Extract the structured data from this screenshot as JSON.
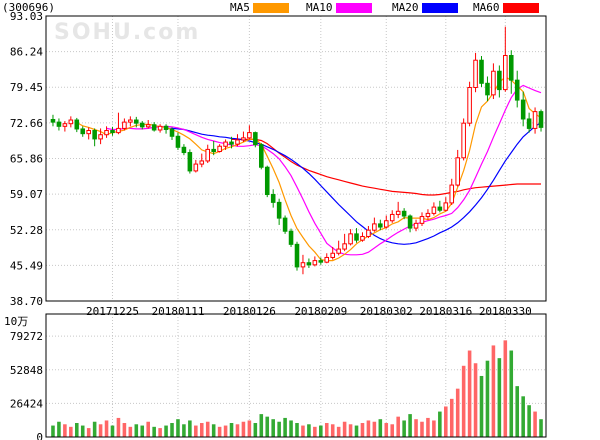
{
  "header": {
    "stock_code": "(300696)",
    "watermark": "SOHU.com",
    "legend": [
      {
        "label": "MA5",
        "color": "#ff9900"
      },
      {
        "label": "MA10",
        "color": "#ff00ff"
      },
      {
        "label": "MA20",
        "color": "#0000ff"
      },
      {
        "label": "MA60",
        "color": "#ff0000"
      }
    ]
  },
  "chart_data": [
    {
      "type": "candlestick",
      "title": "",
      "price_ticks": [
        "93.03",
        "86.24",
        "79.45",
        "72.66",
        "65.86",
        "59.07",
        "52.28",
        "45.49",
        "38.70"
      ],
      "ylim": [
        38.7,
        93.03
      ],
      "x_ticks": [
        {
          "label": "20171225",
          "index": 10
        },
        {
          "label": "20180111",
          "index": 21
        },
        {
          "label": "20180126",
          "index": 33
        },
        {
          "label": "20180209",
          "index": 45
        },
        {
          "label": "20180302",
          "index": 56
        },
        {
          "label": "20180316",
          "index": 66
        },
        {
          "label": "20180330",
          "index": 76
        }
      ],
      "up_color": "#ff0000",
      "down_color": "#009900",
      "ohlc": [
        [
          73.3,
          72.8,
          74.2,
          72.0
        ],
        [
          72.8,
          72.0,
          73.5,
          71.2
        ],
        [
          72.0,
          72.5,
          73.0,
          71.0
        ],
        [
          72.5,
          73.2,
          73.9,
          71.8
        ],
        [
          73.2,
          71.5,
          73.6,
          70.9
        ],
        [
          71.5,
          70.6,
          72.0,
          70.0
        ],
        [
          70.6,
          71.2,
          71.8,
          69.5
        ],
        [
          71.2,
          69.6,
          71.6,
          68.2
        ],
        [
          69.6,
          70.4,
          71.6,
          68.6
        ],
        [
          70.4,
          71.2,
          72.0,
          69.8
        ],
        [
          71.2,
          70.8,
          71.9,
          70.2
        ],
        [
          70.8,
          71.6,
          74.6,
          70.5
        ],
        [
          71.6,
          72.8,
          73.5,
          71.2
        ],
        [
          72.8,
          73.2,
          73.9,
          72.0
        ],
        [
          73.2,
          72.6,
          73.8,
          71.8
        ],
        [
          72.6,
          71.9,
          73.0,
          71.4
        ],
        [
          71.9,
          72.3,
          73.2,
          71.6
        ],
        [
          72.3,
          71.3,
          72.8,
          71.0
        ],
        [
          71.3,
          72.0,
          72.4,
          70.8
        ],
        [
          72.0,
          71.4,
          72.4,
          70.6
        ],
        [
          71.4,
          70.1,
          71.8,
          69.4
        ],
        [
          70.1,
          68.0,
          70.8,
          67.5
        ],
        [
          68.0,
          67.0,
          68.6,
          66.5
        ],
        [
          67.0,
          63.5,
          67.6,
          63.0
        ],
        [
          63.5,
          64.8,
          65.6,
          63.2
        ],
        [
          64.8,
          65.4,
          66.8,
          64.2
        ],
        [
          65.4,
          67.6,
          68.5,
          65.0
        ],
        [
          67.6,
          67.2,
          69.2,
          66.5
        ],
        [
          67.2,
          68.2,
          68.6,
          67.0
        ],
        [
          68.2,
          69.0,
          69.5,
          67.5
        ],
        [
          69.0,
          68.6,
          70.0,
          67.8
        ],
        [
          68.6,
          69.4,
          70.5,
          68.2
        ],
        [
          69.4,
          69.8,
          71.0,
          69.0
        ],
        [
          69.8,
          70.8,
          72.2,
          69.5
        ],
        [
          70.8,
          68.5,
          71.0,
          68.0
        ],
        [
          68.5,
          64.2,
          68.8,
          63.8
        ],
        [
          64.2,
          59.0,
          64.5,
          58.5
        ],
        [
          59.0,
          57.5,
          60.0,
          56.5
        ],
        [
          57.5,
          54.5,
          58.2,
          53.2
        ],
        [
          54.5,
          52.0,
          55.0,
          51.5
        ],
        [
          52.0,
          49.5,
          52.5,
          49.0
        ],
        [
          49.5,
          45.2,
          50.0,
          44.5
        ],
        [
          45.2,
          46.0,
          47.5,
          43.8
        ],
        [
          46.0,
          45.6,
          46.8,
          45.0
        ],
        [
          45.6,
          46.4,
          47.2,
          45.3
        ],
        [
          46.4,
          46.1,
          47.0,
          45.6
        ],
        [
          46.1,
          47.0,
          47.8,
          45.9
        ],
        [
          47.0,
          47.8,
          49.0,
          46.6
        ],
        [
          47.8,
          48.6,
          50.2,
          47.4
        ],
        [
          48.6,
          49.6,
          51.5,
          48.2
        ],
        [
          49.6,
          51.5,
          52.4,
          49.3
        ],
        [
          51.5,
          50.3,
          52.6,
          49.8
        ],
        [
          50.3,
          51.0,
          51.8,
          50.0
        ],
        [
          51.0,
          52.2,
          53.0,
          50.7
        ],
        [
          52.2,
          53.4,
          54.6,
          51.9
        ],
        [
          53.4,
          52.8,
          54.2,
          52.2
        ],
        [
          52.8,
          54.0,
          55.0,
          52.5
        ],
        [
          54.0,
          55.2,
          56.0,
          53.6
        ],
        [
          55.2,
          55.8,
          57.6,
          54.5
        ],
        [
          55.8,
          54.9,
          56.4,
          54.3
        ],
        [
          54.9,
          52.6,
          55.2,
          51.8
        ],
        [
          52.6,
          53.5,
          54.2,
          52.0
        ],
        [
          53.5,
          54.8,
          55.6,
          53.0
        ],
        [
          54.8,
          55.4,
          56.2,
          54.2
        ],
        [
          55.4,
          56.6,
          57.5,
          55.0
        ],
        [
          56.6,
          56.0,
          57.8,
          55.6
        ],
        [
          56.0,
          57.4,
          58.5,
          55.8
        ],
        [
          57.4,
          60.8,
          62.0,
          57.0
        ],
        [
          60.8,
          66.0,
          67.5,
          60.5
        ],
        [
          66.0,
          72.6,
          73.5,
          65.5
        ],
        [
          72.6,
          79.4,
          80.5,
          72.0
        ],
        [
          79.4,
          84.6,
          86.0,
          78.5
        ],
        [
          84.6,
          80.2,
          85.4,
          79.5
        ],
        [
          80.2,
          78.0,
          81.5,
          76.8
        ],
        [
          78.0,
          82.5,
          84.0,
          77.2
        ],
        [
          82.5,
          79.0,
          83.6,
          77.5
        ],
        [
          79.0,
          85.5,
          91.0,
          78.6
        ],
        [
          85.5,
          80.8,
          86.5,
          78.2
        ],
        [
          80.8,
          77.0,
          82.6,
          75.6
        ],
        [
          77.0,
          73.4,
          78.6,
          72.0
        ],
        [
          73.4,
          71.6,
          74.6,
          70.8
        ],
        [
          71.6,
          74.8,
          75.6,
          70.6
        ],
        [
          74.8,
          71.8,
          75.2,
          71.0
        ]
      ],
      "ma5": [
        null,
        null,
        null,
        null,
        72.7,
        72.1,
        71.8,
        71.4,
        71.0,
        70.4,
        70.8,
        71.0,
        71.3,
        71.8,
        72.2,
        72.3,
        72.4,
        72.2,
        71.9,
        71.8,
        71.4,
        70.9,
        70.3,
        69.6,
        68.6,
        67.5,
        67.1,
        66.8,
        67.2,
        67.8,
        68.1,
        68.5,
        69.0,
        69.5,
        69.6,
        68.6,
        66.3,
        63.9,
        61.3,
        58.0,
        55.0,
        52.5,
        50.8,
        49.2,
        48.0,
        46.6,
        46.4,
        46.4,
        46.9,
        47.6,
        48.5,
        49.6,
        50.4,
        51.1,
        51.7,
        52.3,
        52.7,
        53.4,
        53.8,
        54.6,
        54.5,
        54.5,
        54.5,
        54.2,
        54.6,
        55.3,
        55.8,
        57.3,
        60.4,
        63.6,
        67.4,
        72.4,
        75.7,
        76.8,
        78.4,
        80.4,
        81.4,
        80.8,
        79.7,
        78.6,
        75.4,
        74.4,
        73.6
      ],
      "ma10": [
        null,
        null,
        null,
        null,
        null,
        null,
        null,
        null,
        null,
        71.6,
        71.4,
        71.4,
        71.6,
        71.6,
        71.5,
        71.5,
        71.6,
        71.8,
        71.9,
        72.0,
        71.9,
        71.7,
        71.4,
        70.9,
        70.4,
        69.9,
        69.5,
        69.2,
        68.9,
        68.7,
        68.4,
        68.2,
        68.2,
        68.3,
        68.5,
        68.3,
        67.6,
        66.8,
        65.8,
        64.3,
        62.6,
        60.4,
        58.1,
        55.7,
        53.5,
        51.6,
        49.7,
        48.8,
        48.0,
        47.6,
        47.5,
        47.5,
        47.6,
        48.0,
        48.8,
        49.6,
        50.3,
        51.1,
        51.8,
        52.4,
        53.0,
        53.4,
        53.7,
        54.0,
        54.3,
        54.7,
        55.0,
        55.4,
        56.5,
        58.0,
        59.8,
        62.3,
        64.8,
        67.2,
        69.9,
        72.5,
        75.1,
        77.5,
        79.1,
        79.8,
        79.3,
        78.8,
        78.4
      ],
      "ma20": [
        null,
        null,
        null,
        null,
        null,
        null,
        null,
        null,
        null,
        null,
        null,
        null,
        null,
        null,
        null,
        null,
        null,
        null,
        null,
        71.6,
        71.6,
        71.5,
        71.4,
        71.1,
        70.8,
        70.5,
        70.3,
        70.2,
        70.0,
        69.9,
        69.7,
        69.6,
        69.4,
        69.2,
        68.9,
        68.6,
        68.1,
        67.6,
        67.0,
        66.4,
        65.7,
        64.9,
        64.0,
        63.0,
        61.9,
        60.7,
        59.5,
        58.3,
        57.1,
        56.0,
        54.9,
        53.8,
        52.9,
        52.0,
        51.2,
        50.6,
        50.1,
        49.8,
        49.6,
        49.5,
        49.6,
        49.8,
        50.2,
        50.6,
        51.1,
        51.7,
        52.2,
        52.8,
        53.6,
        54.6,
        55.7,
        57.0,
        58.4,
        60.0,
        61.7,
        63.6,
        65.4,
        67.0,
        68.6,
        70.0,
        71.0,
        72.0,
        72.7
      ],
      "ma60": [
        null,
        null,
        null,
        null,
        null,
        null,
        null,
        null,
        null,
        null,
        null,
        null,
        null,
        null,
        null,
        null,
        null,
        null,
        null,
        null,
        null,
        null,
        null,
        null,
        null,
        null,
        null,
        null,
        null,
        null,
        69.5,
        69.5,
        69.5,
        69.5,
        69.5,
        69.3,
        68.7,
        67.8,
        66.9,
        66.1,
        65.3,
        64.6,
        64.1,
        63.6,
        63.2,
        62.8,
        62.4,
        62.1,
        61.8,
        61.5,
        61.2,
        60.9,
        60.6,
        60.4,
        60.2,
        60.0,
        59.8,
        59.6,
        59.5,
        59.4,
        59.3,
        59.2,
        59.0,
        58.9,
        58.9,
        59.0,
        59.2,
        59.4,
        59.6,
        59.9,
        60.1,
        60.3,
        60.4,
        60.5,
        60.6,
        60.7,
        60.8,
        60.9,
        61.0,
        61.0,
        61.0,
        61.0,
        61.0
      ]
    },
    {
      "type": "bar",
      "title": "",
      "unit_label": "10万",
      "volume_ticks": [
        "79272",
        "52848",
        "26424",
        "0"
      ],
      "ylim": [
        0,
        92000
      ],
      "volumes": [
        9000,
        12000,
        10000,
        8000,
        11000,
        9000,
        7000,
        12000,
        10000,
        13000,
        9000,
        15000,
        11000,
        8000,
        10000,
        9000,
        12000,
        8000,
        7000,
        9000,
        11000,
        14000,
        10000,
        13000,
        9000,
        11000,
        12000,
        10000,
        8000,
        9000,
        11000,
        10000,
        12000,
        13000,
        11000,
        18000,
        16000,
        14000,
        12000,
        15000,
        13000,
        11000,
        9000,
        10000,
        8000,
        9000,
        11000,
        10000,
        8000,
        12000,
        10000,
        9000,
        11000,
        13000,
        12000,
        14000,
        11000,
        10000,
        16000,
        13000,
        18000,
        14000,
        12000,
        15000,
        13000,
        20000,
        24000,
        30000,
        38000,
        56000,
        68000,
        58000,
        48000,
        60000,
        72000,
        62000,
        76000,
        68000,
        40000,
        32000,
        25000,
        20000,
        14000
      ]
    }
  ]
}
